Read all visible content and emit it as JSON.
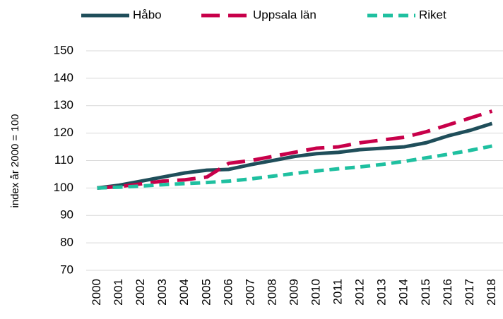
{
  "chart_data": {
    "type": "line",
    "y_label": "index år 2000 = 100",
    "categories": [
      "2000",
      "2001",
      "2002",
      "2003",
      "2004",
      "2005",
      "2006",
      "2007",
      "2008",
      "2009",
      "2010",
      "2011",
      "2012",
      "2013",
      "2014",
      "2015",
      "2016",
      "2017",
      "2018"
    ],
    "series": [
      {
        "name": "Håbo",
        "color": "#1f4e5a",
        "line_style": "solid",
        "values": [
          100,
          101,
          102.5,
          104,
          105.5,
          106.5,
          106.8,
          108.5,
          110,
          111.5,
          112.5,
          113,
          114,
          114.5,
          115,
          116.5,
          119,
          121,
          123.5
        ]
      },
      {
        "name": "Uppsala län",
        "color": "#c8004a",
        "line_style": "long-dash",
        "values": [
          100,
          100.5,
          101.5,
          102.5,
          103,
          104,
          109,
          110,
          111.5,
          113,
          114.5,
          115,
          116.5,
          117.5,
          118.5,
          120.5,
          123,
          125.5,
          128
        ]
      },
      {
        "name": "Riket",
        "color": "#1fc0a0",
        "line_style": "short-dash",
        "values": [
          100,
          100.3,
          100.7,
          101.2,
          101.6,
          102,
          102.5,
          103.3,
          104.3,
          105.3,
          106.2,
          107,
          107.7,
          108.6,
          109.7,
          111,
          112.3,
          113.7,
          115.3
        ]
      }
    ],
    "ylim": [
      70,
      150
    ],
    "yticks": [
      70,
      80,
      90,
      100,
      110,
      120,
      130,
      140,
      150
    ],
    "grid": true,
    "legend": "top"
  }
}
